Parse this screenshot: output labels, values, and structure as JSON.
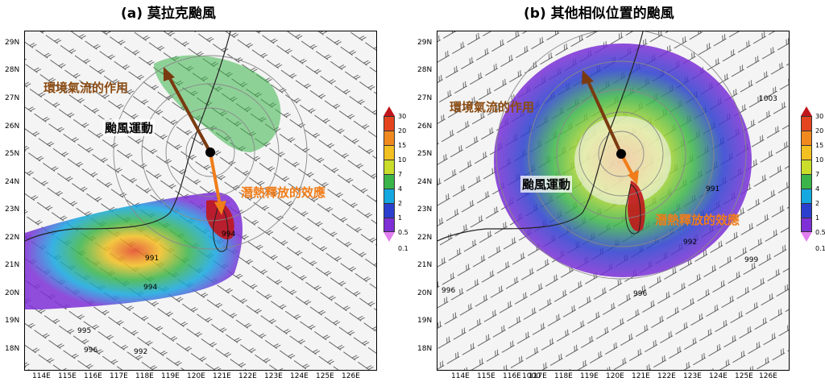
{
  "panels": [
    {
      "title": "(a) 莫拉克颱風",
      "ann_env": "環境氣流的作用",
      "ann_motion": "颱風運動",
      "ann_latent": "潛熱釋放的效應",
      "contour_labels": [
        "994",
        "994",
        "995",
        "996",
        "991",
        "992"
      ]
    },
    {
      "title": "(b) 其他相似位置的颱風",
      "ann_env": "環境氣流的作用",
      "ann_motion": "颱風運動",
      "ann_latent": "潛熱釋放的效應",
      "contour_labels": [
        "1003",
        "991",
        "992",
        "999",
        "996",
        "1000",
        "996"
      ]
    }
  ],
  "lat_labels": [
    "29N",
    "28N",
    "27N",
    "26N",
    "25N",
    "24N",
    "23N",
    "22N",
    "21N",
    "20N",
    "19N",
    "18N"
  ],
  "lon_labels": [
    "114E",
    "115E",
    "116E",
    "117E",
    "118E",
    "119E",
    "120E",
    "121E",
    "122E",
    "123E",
    "124E",
    "125E",
    "126E"
  ],
  "colorbar": {
    "labels": [
      "30",
      "20",
      "15",
      "10",
      "7",
      "4",
      "2",
      "1",
      "0.5",
      "0.1"
    ],
    "colors": [
      "#c0161b",
      "#e4451f",
      "#f08a1e",
      "#f3c021",
      "#c9dd2a",
      "#3bb54a",
      "#15a7e0",
      "#2b3fcf",
      "#7e2fd6",
      "#e27ff0"
    ]
  },
  "colors": {
    "arrow_brown": "#7a3a10",
    "arrow_orange": "#f07d1a",
    "text_brown": "#8a4b12",
    "text_orange": "#f07d1a"
  }
}
